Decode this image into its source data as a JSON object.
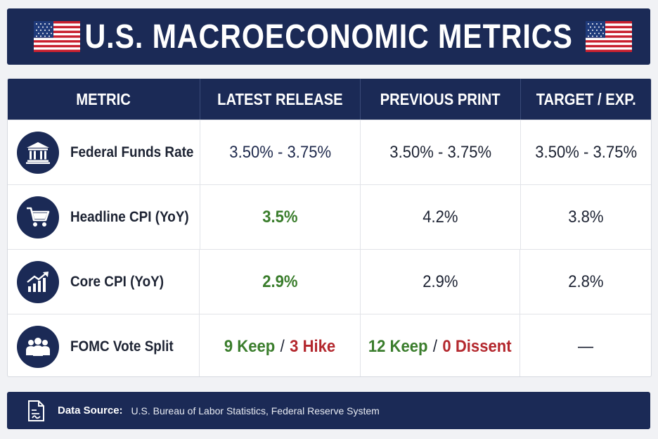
{
  "header": {
    "title": "U.S. MACROECONOMIC METRICS",
    "flag_icon": "us-flag-icon"
  },
  "table": {
    "columns": [
      "METRIC",
      "LATEST RELEASE",
      "PREVIOUS PRINT",
      "TARGET / EXP."
    ],
    "rows": [
      {
        "icon": "bank-icon",
        "metric": "Federal Funds Rate",
        "latest": "3.50% - 3.75%",
        "previous": "3.50% - 3.75%",
        "target": "3.50% - 3.75%"
      },
      {
        "icon": "shopping-cart-icon",
        "metric": "Headline CPI (YoY)",
        "latest": "3.5%",
        "previous": "4.2%",
        "target": "3.8%"
      },
      {
        "icon": "chart-up-icon",
        "metric": "Core CPI (YoY)",
        "latest": "2.9%",
        "previous": "2.9%",
        "target": "2.8%"
      },
      {
        "icon": "people-icon",
        "metric": "FOMC Vote Split",
        "latest": {
          "a": "9 Keep",
          "sep": "/",
          "b": "3 Hike"
        },
        "previous": {
          "a": "12 Keep",
          "sep": "/",
          "b": "0 Dissent"
        },
        "target": "—"
      }
    ]
  },
  "footer": {
    "label": "Data Source:",
    "value": "U.S. Bureau of Labor Statistics, Federal Reserve System",
    "icon": "document-icon"
  },
  "colors": {
    "navy": "#1b2a56",
    "positive": "#3a7d2c",
    "negative": "#b3272d"
  }
}
